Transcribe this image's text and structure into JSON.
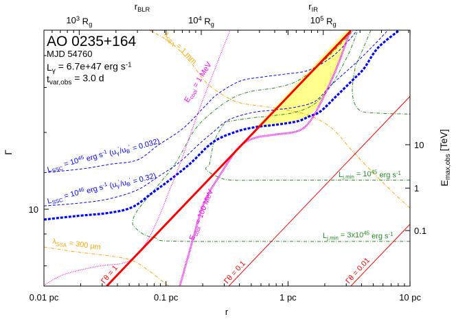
{
  "header": {
    "title": "AO 0235+164",
    "mjd": "MJD 54760",
    "lgamma": [
      [
        "L",
        ""
      ],
      [
        "γ",
        "sub"
      ],
      [
        " = 6.7e+47 erg s",
        ""
      ],
      [
        "-1",
        "sup"
      ]
    ],
    "tvar": [
      [
        "t",
        ""
      ],
      [
        "var,obs",
        "sub"
      ],
      [
        " = 3.0 d",
        ""
      ]
    ]
  },
  "chart_data": {
    "type": "line",
    "title": "AO 0235+164",
    "xlabel": "r",
    "ylabel": "Γ",
    "y2label": [
      [
        "E",
        ""
      ],
      [
        "max,obs",
        "sub"
      ],
      [
        " [TeV]",
        ""
      ]
    ],
    "x_scale": "log",
    "y_scale": "log",
    "xlim": [
      0.01,
      10
    ],
    "ylim": [
      5,
      50
    ],
    "grid": false,
    "x_ticks": [
      {
        "value": 0.01,
        "label": "0.01 pc"
      },
      {
        "value": 0.1,
        "label": "0.1 pc"
      },
      {
        "value": 1,
        "label": "1 pc"
      },
      {
        "value": 10,
        "label": "10 pc"
      }
    ],
    "y_ticks": [
      {
        "value": 10,
        "label": "10"
      }
    ],
    "y_minor_ticks": [
      6,
      8,
      20,
      30,
      40
    ],
    "top_axis": {
      "unit_pc_per_Rg": 1.945e-05,
      "ticks": [
        {
          "Rg": 1000,
          "label": [
            [
              "10",
              ""
            ],
            [
              "3",
              "sup"
            ],
            [
              " R",
              ""
            ],
            [
              "g",
              "sub"
            ]
          ]
        },
        {
          "Rg": 10000,
          "label": [
            [
              "10",
              ""
            ],
            [
              "4",
              "sup"
            ],
            [
              " R",
              ""
            ],
            [
              "g",
              "sub"
            ]
          ]
        },
        {
          "Rg": 100000,
          "label": [
            [
              "10",
              ""
            ],
            [
              "5",
              "sup"
            ],
            [
              " R",
              ""
            ],
            [
              "g",
              "sub"
            ]
          ]
        }
      ],
      "markers": [
        {
          "r": 0.0638,
          "label": [
            [
              "r",
              ""
            ],
            [
              "BLR",
              "sub"
            ]
          ]
        },
        {
          "r": 1.61,
          "label": [
            [
              "r",
              ""
            ],
            [
              "IR",
              "sub"
            ]
          ]
        }
      ]
    },
    "right_axis": {
      "ticks": [
        {
          "label": "10",
          "gamma_equiv": 17.9
        },
        {
          "label": "1",
          "gamma_equiv": 12.1
        },
        {
          "label": "0.1",
          "gamma_equiv": 8.25
        }
      ]
    },
    "allowed_region": {
      "color": "#ffff80",
      "points": [
        [
          0.548,
          21.0
        ],
        [
          3.03,
          50.3
        ],
        [
          3.24,
          50.3
        ],
        [
          2.84,
          42.0
        ],
        [
          2.4,
          34.1
        ],
        [
          1.85,
          26.1
        ],
        [
          1.525,
          23.3
        ],
        [
          1.19,
          22.1
        ],
        [
          0.778,
          21.4
        ],
        [
          0.548,
          21.0
        ]
      ]
    },
    "series": [
      {
        "id": "lssa300",
        "color": "#ffa500",
        "style": "dashdot",
        "points": [
          [
            0.01,
            7.11
          ],
          [
            0.0182,
            6.81
          ],
          [
            0.0347,
            6.56
          ],
          [
            0.0532,
            6.29
          ],
          [
            0.0755,
            5.66
          ],
          [
            0.0977,
            5.13
          ],
          [
            0.107,
            5.0
          ]
        ]
      },
      {
        "id": "lssa1",
        "color": "#ffa500",
        "style": "dashdot",
        "points": [
          [
            0.0736,
            50.3
          ],
          [
            0.111,
            44.7
          ],
          [
            0.158,
            37.8
          ],
          [
            0.213,
            31.4
          ],
          [
            0.302,
            27.8
          ],
          [
            0.406,
            26.1
          ],
          [
            0.624,
            25.3
          ],
          [
            0.97,
            24.5
          ],
          [
            1.49,
            23.3
          ],
          [
            2.28,
            20.8
          ],
          [
            3.37,
            16.9
          ],
          [
            4.77,
            14.2
          ],
          [
            7.03,
            11.8
          ],
          [
            10,
            10.1
          ]
        ]
      },
      {
        "id": "lj3e45",
        "color": "#228b22",
        "style": "dashdot",
        "points": [
          [
            10,
            7.48
          ],
          [
            0.778,
            7.48
          ],
          [
            0.111,
            7.5
          ],
          [
            0.0826,
            7.71
          ],
          [
            0.0664,
            7.95
          ],
          [
            0.056,
            8.46
          ],
          [
            0.0532,
            8.94
          ],
          [
            0.0582,
            9.88
          ],
          [
            0.0755,
            11.5
          ],
          [
            0.119,
            15.1
          ],
          [
            0.171,
            20.4
          ],
          [
            0.242,
            24.1
          ],
          [
            0.357,
            27.4
          ],
          [
            0.507,
            29.0
          ],
          [
            0.778,
            29.9
          ],
          [
            1.19,
            31.8
          ],
          [
            1.85,
            37.2
          ],
          [
            2.84,
            45.6
          ],
          [
            3.45,
            50.3
          ]
        ]
      },
      {
        "id": "lj1e45",
        "color": "#228b22",
        "style": "dashdot",
        "points": [
          [
            10,
            13.0
          ],
          [
            0.778,
            13.0
          ],
          [
            0.357,
            13.0
          ],
          [
            0.276,
            13.3
          ],
          [
            0.213,
            14.3
          ],
          [
            0.227,
            15.0
          ],
          [
            0.236,
            16.6
          ],
          [
            0.252,
            18.8
          ],
          [
            0.302,
            21.7
          ],
          [
            0.327,
            22.1
          ],
          [
            0.507,
            22.8
          ],
          [
            0.778,
            23.3
          ],
          [
            1.19,
            24.1
          ],
          [
            1.69,
            26.1
          ],
          [
            2.28,
            30.8
          ],
          [
            3.11,
            40.3
          ],
          [
            3.68,
            49.4
          ]
        ]
      },
      {
        "id": "lj_right",
        "color": "#228b22",
        "style": "dashdot",
        "points": [
          [
            4.77,
            50.3
          ],
          [
            3.93,
            40.3
          ],
          [
            3.54,
            35.6
          ],
          [
            3.37,
            28.3
          ],
          [
            3.83,
            24.5
          ],
          [
            5.43,
            23.8
          ],
          [
            10,
            23.6
          ]
        ]
      },
      {
        "id": "lssc45",
        "color": "#0000ff",
        "style": "dashed",
        "points": [
          [
            0.01,
            13.9
          ],
          [
            0.0207,
            14.4
          ],
          [
            0.0347,
            15.0
          ],
          [
            0.0582,
            15.6
          ],
          [
            0.0859,
            17.8
          ],
          [
            0.139,
            20.8
          ],
          [
            0.213,
            25.6
          ],
          [
            0.266,
            28.3
          ],
          [
            0.406,
            31.8
          ],
          [
            0.624,
            33.0
          ],
          [
            0.97,
            33.9
          ],
          [
            1.49,
            35.1
          ],
          [
            2.28,
            39.5
          ],
          [
            3.11,
            45.6
          ],
          [
            3.68,
            50.3
          ]
        ]
      },
      {
        "id": "lssc46",
        "color": "#0000ff",
        "style": "dashed",
        "points": [
          [
            0.01,
            10.3
          ],
          [
            0.0207,
            10.6
          ],
          [
            0.0347,
            11.0
          ],
          [
            0.0582,
            11.9
          ],
          [
            0.0859,
            13.4
          ],
          [
            0.127,
            15.2
          ],
          [
            0.187,
            18.0
          ],
          [
            0.242,
            20.0
          ],
          [
            0.327,
            22.4
          ],
          [
            0.507,
            23.9
          ],
          [
            0.778,
            24.5
          ],
          [
            1.19,
            25.2
          ],
          [
            1.69,
            26.6
          ],
          [
            2.28,
            30.8
          ],
          [
            3.54,
            37.2
          ],
          [
            4.96,
            43.6
          ],
          [
            6.59,
            50.3
          ]
        ]
      },
      {
        "id": "lssc_thick",
        "color": "#0000ff",
        "style": "thick-dashed",
        "points": [
          [
            0.01,
            9.11
          ],
          [
            0.0182,
            9.4
          ],
          [
            0.0347,
            9.69
          ],
          [
            0.0532,
            10.2
          ],
          [
            0.0755,
            11.5
          ],
          [
            0.107,
            13.0
          ],
          [
            0.158,
            15.1
          ],
          [
            0.242,
            18.3
          ],
          [
            0.372,
            20.1
          ],
          [
            0.548,
            21.0
          ],
          [
            0.778,
            21.4
          ],
          [
            1.19,
            22.1
          ],
          [
            1.49,
            23.1
          ],
          [
            1.85,
            24.2
          ],
          [
            2.5,
            27.8
          ],
          [
            3.37,
            32.0
          ],
          [
            4.19,
            35.6
          ],
          [
            5.43,
            42.8
          ],
          [
            8.02,
            50
          ]
        ]
      },
      {
        "id": "ecool1",
        "color": "#ff00ff",
        "style": "dotted",
        "points": [
          [
            0.01,
            5.03
          ],
          [
            0.0146,
            5.55
          ],
          [
            0.0279,
            5.98
          ],
          [
            0.0432,
            6.13
          ],
          [
            0.0546,
            6.48
          ],
          [
            0.0708,
            7.57
          ],
          [
            0.0881,
            9.4
          ],
          [
            0.108,
            12.0
          ],
          [
            0.13,
            15.0
          ],
          [
            0.187,
            24.5
          ],
          [
            0.259,
            36.7
          ],
          [
            0.335,
            50.3
          ]
        ]
      },
      {
        "id": "ecool100",
        "color": "#ff00ff",
        "style": "thick-dotted",
        "points": [
          [
            0.13,
            5.0
          ],
          [
            0.154,
            6.69
          ],
          [
            0.1945,
            9.88
          ],
          [
            0.227,
            11.7
          ],
          [
            0.266,
            13.2
          ],
          [
            0.335,
            15.7
          ],
          [
            0.406,
            17.7
          ],
          [
            0.527,
            19.0
          ],
          [
            0.778,
            19.6
          ],
          [
            1.19,
            20.2
          ],
          [
            1.49,
            21.9
          ],
          [
            1.85,
            26.1
          ],
          [
            2.4,
            34.1
          ],
          [
            2.84,
            42.0
          ],
          [
            3.24,
            50.3
          ]
        ]
      },
      {
        "id": "gt1",
        "color": "#ff0000",
        "style": "thick-solid",
        "points": [
          [
            0.0327,
            5
          ],
          [
            3.27,
            50
          ]
        ]
      },
      {
        "id": "gt01",
        "color": "#ff0000",
        "style": "solid",
        "points": [
          [
            0.327,
            5
          ],
          [
            10,
            27.7
          ]
        ]
      },
      {
        "id": "gt001",
        "color": "#ff0000",
        "style": "solid",
        "points": [
          [
            3.27,
            5
          ],
          [
            10,
            8.74
          ]
        ]
      }
    ],
    "annotations": [
      {
        "id": "gt1",
        "color": "#ff0000",
        "text": [
          [
            "Γθ = 1",
            ""
          ]
        ]
      },
      {
        "id": "gt01",
        "color": "#ff0000",
        "text": [
          [
            "Γθ = 0.1",
            ""
          ]
        ]
      },
      {
        "id": "gt001",
        "color": "#ff0000",
        "text": [
          [
            "Γθ = 0.01",
            ""
          ]
        ]
      },
      {
        "id": "lssc45",
        "color": "#0000ff",
        "text": [
          [
            "L",
            ""
          ],
          [
            "SSC",
            "sub"
          ],
          [
            " = 10",
            ""
          ],
          [
            "45",
            "sup"
          ],
          [
            " erg s",
            ""
          ],
          [
            "-1",
            "sup"
          ],
          [
            " (u",
            ""
          ],
          [
            "γ",
            "sub"
          ],
          [
            "'",
            "sup"
          ],
          [
            "/u",
            ""
          ],
          [
            "B",
            "sub"
          ],
          [
            "'",
            "sup"
          ],
          [
            " = 0.032)",
            ""
          ]
        ]
      },
      {
        "id": "lssc46",
        "color": "#0000ff",
        "text": [
          [
            "L",
            ""
          ],
          [
            "SSC",
            "sub"
          ],
          [
            " = 10",
            ""
          ],
          [
            "46",
            "sup"
          ],
          [
            " erg s",
            ""
          ],
          [
            "-1",
            "sup"
          ],
          [
            " (u",
            ""
          ],
          [
            "γ",
            "sub"
          ],
          [
            "'",
            "sup"
          ],
          [
            "/u",
            ""
          ],
          [
            "B",
            "sub"
          ],
          [
            "'",
            "sup"
          ],
          [
            " = 0.32)",
            ""
          ]
        ]
      },
      {
        "id": "lj1e45",
        "color": "#228b22",
        "text": [
          [
            "L",
            ""
          ],
          [
            "j,min",
            "sub"
          ],
          [
            " = 10",
            ""
          ],
          [
            "45",
            "sup"
          ],
          [
            " erg s",
            ""
          ],
          [
            "-1",
            "sup"
          ]
        ]
      },
      {
        "id": "lj3e45",
        "color": "#228b22",
        "text": [
          [
            "L",
            ""
          ],
          [
            "j,min",
            "sub"
          ],
          [
            " = 3x10",
            ""
          ],
          [
            "45",
            "sup"
          ],
          [
            " erg s",
            ""
          ],
          [
            "-1",
            "sup"
          ]
        ]
      },
      {
        "id": "ecool1",
        "color": "#ff00ff",
        "text": [
          [
            "E",
            ""
          ],
          [
            "cool",
            "sub"
          ],
          [
            " = 1 MeV",
            ""
          ]
        ]
      },
      {
        "id": "ecool100",
        "color": "#ff00ff",
        "text": [
          [
            "E",
            ""
          ],
          [
            "cool",
            "sub"
          ],
          [
            " = 100 MeV",
            ""
          ]
        ]
      },
      {
        "id": "lssa1",
        "color": "#ffa500",
        "text": [
          [
            "λ",
            ""
          ],
          [
            "SSA",
            "sub"
          ],
          [
            " = 1 mm",
            ""
          ]
        ]
      },
      {
        "id": "lssa300",
        "color": "#ffa500",
        "text": [
          [
            "λ",
            ""
          ],
          [
            "SSA",
            "sub"
          ],
          [
            " = 300 μm",
            ""
          ]
        ]
      }
    ]
  }
}
